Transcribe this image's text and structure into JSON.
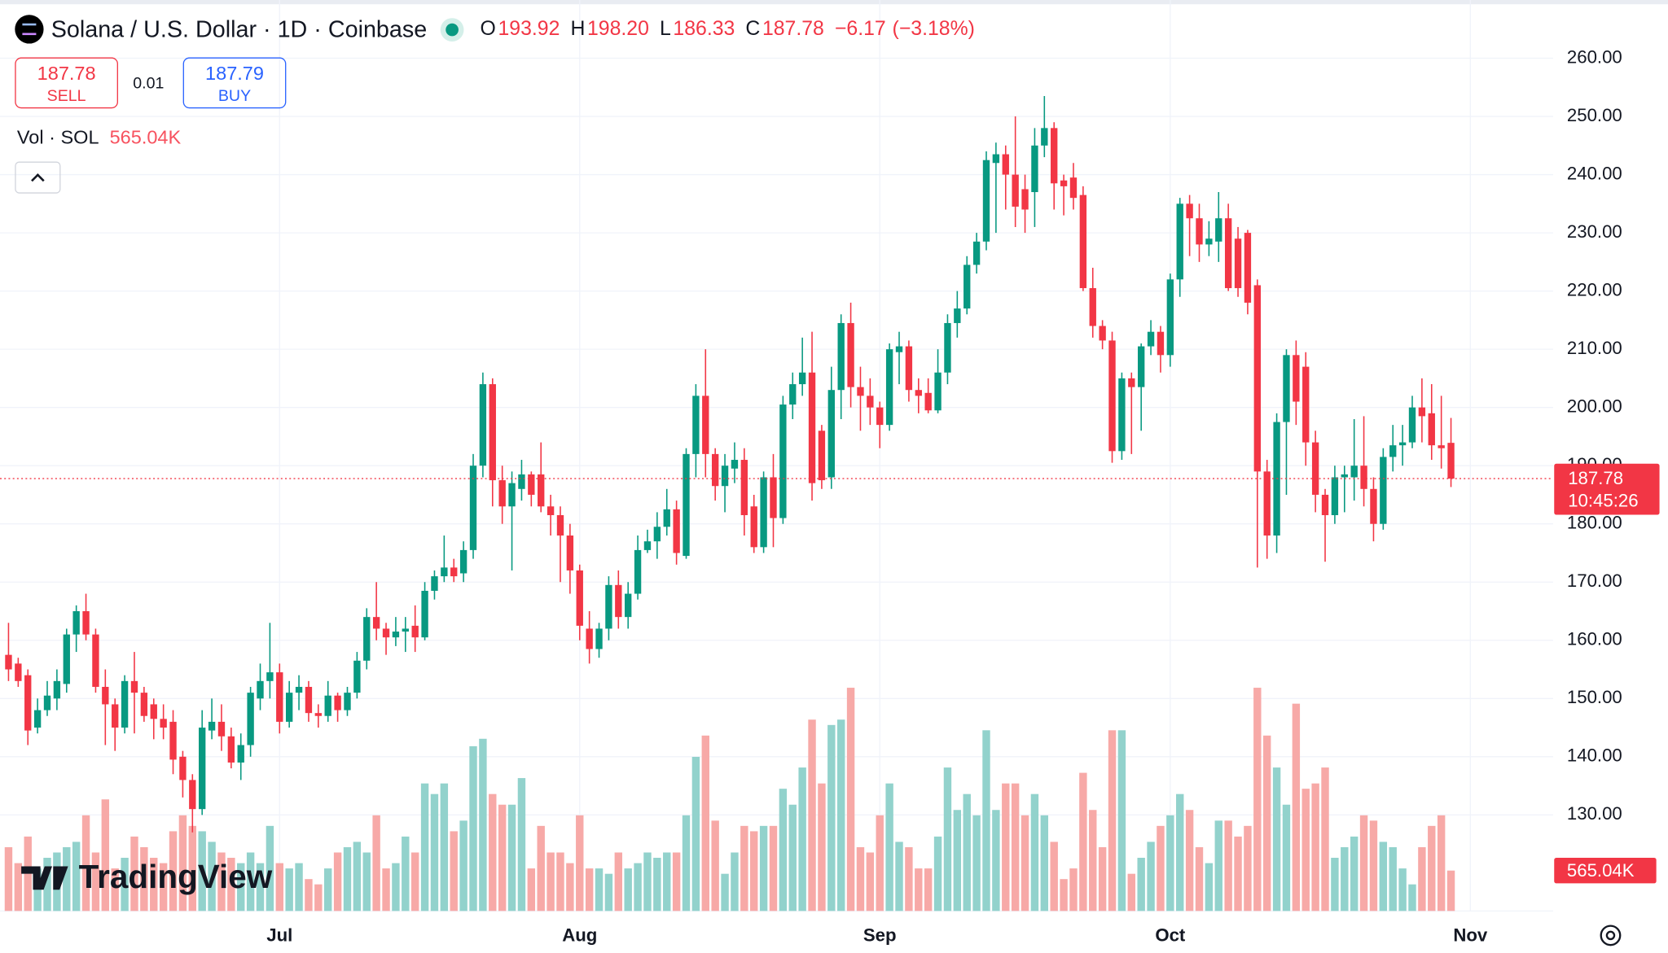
{
  "chart_data": {
    "type": "candlestick",
    "title": "Solana / U.S. Dollar · 1D · Coinbase",
    "ohlc_legend": [
      {
        "key": "O",
        "value": 193.92,
        "label": "193.92"
      },
      {
        "key": "H",
        "value": 198.2,
        "label": "198.20"
      },
      {
        "key": "L",
        "value": 186.33,
        "label": "186.33"
      },
      {
        "key": "C",
        "value": 187.78,
        "label": "187.78"
      }
    ],
    "change": {
      "value": -6.17,
      "label": "−6.17"
    },
    "change_percent": {
      "value": -3.18,
      "label": "(−3.18%)"
    },
    "sell": {
      "value": 187.78,
      "label": "187.78",
      "text": "SELL"
    },
    "spread": 0.01,
    "buy": {
      "value": 187.79,
      "label": "187.79",
      "text": "BUY"
    },
    "volume_legend": "Vol · SOL",
    "open": [
      157.5,
      156,
      154,
      145,
      148,
      150,
      152.5,
      161,
      165,
      161,
      152,
      149,
      145,
      153,
      151,
      149,
      146.5,
      146,
      140,
      136,
      131,
      144.5,
      146,
      143.5,
      139,
      142,
      150,
      153,
      154.5,
      146,
      151,
      152,
      147.5,
      147,
      150.5,
      148,
      151,
      156.5,
      164,
      162,
      160.5,
      161.5,
      162.5,
      160.5,
      168.5,
      171,
      172.5,
      171.5,
      175.5,
      190,
      204,
      187.5,
      183,
      186,
      188.5,
      188.5,
      183,
      181.5,
      178,
      172,
      162,
      158.5,
      162,
      169.5,
      164,
      168,
      175.5,
      177,
      179.5,
      182.5,
      174.5,
      192,
      202,
      192,
      186.5,
      189.5,
      191,
      183,
      176,
      188,
      181,
      200.5,
      204,
      206,
      196,
      188,
      203,
      214.5,
      203.5,
      202,
      200,
      197,
      209.5,
      210.5,
      203,
      202.5,
      199.5,
      206,
      214.5,
      217,
      224.5,
      228.5,
      242,
      243.5,
      240,
      237.5,
      237,
      245,
      248,
      239,
      239.5,
      236.5,
      220.5,
      214,
      211.5,
      192.5,
      205,
      203.5,
      210.5,
      213,
      209,
      222,
      235,
      232.5,
      228,
      228.5,
      232.5,
      229,
      230,
      221,
      189,
      178,
      197.5,
      209,
      207,
      194,
      185,
      181.5,
      188,
      188,
      190,
      186,
      180,
      191.5,
      193.5,
      194,
      200,
      199,
      193.5,
      193.92
    ],
    "high": [
      163,
      157,
      155,
      150,
      153,
      155,
      162,
      166,
      168,
      162,
      155,
      150,
      154,
      158,
      152,
      150,
      149,
      148,
      141,
      137,
      148,
      150,
      149,
      145,
      144,
      152,
      156,
      163,
      156,
      153,
      154,
      153,
      149,
      153,
      151,
      152,
      158,
      165.5,
      170,
      163,
      164,
      164,
      166,
      170,
      172,
      178,
      174,
      177,
      192,
      206,
      205,
      190,
      189,
      191,
      189,
      194,
      185,
      183,
      180,
      173,
      165,
      163,
      171,
      172,
      170,
      178,
      179,
      182,
      186,
      184,
      193,
      204,
      210,
      193,
      192,
      194,
      193,
      185,
      189,
      192,
      202,
      206,
      212,
      213,
      197,
      207,
      216,
      218,
      207,
      205,
      201,
      211,
      213,
      211.5,
      205,
      205,
      210,
      216,
      220,
      226,
      230,
      244,
      245.5,
      245,
      250,
      240,
      248,
      253.5,
      249,
      240,
      242,
      238,
      224,
      215,
      213,
      206,
      206,
      211,
      215,
      214,
      223,
      236,
      236.5,
      235,
      232,
      237,
      235,
      231,
      230.5,
      222,
      191,
      199,
      210,
      211.5,
      209.5,
      196,
      186,
      190,
      190,
      198,
      198.5,
      188,
      193,
      197,
      197,
      202,
      205,
      204,
      202,
      198.2
    ],
    "low": [
      153,
      152,
      142,
      144,
      147,
      148,
      151,
      158,
      160,
      151,
      142,
      141,
      144,
      144,
      146,
      143,
      143,
      137,
      133,
      127,
      130,
      143,
      141,
      138,
      136,
      140,
      148,
      150,
      144,
      145,
      148,
      146,
      145,
      146,
      146,
      147,
      150,
      155,
      160,
      157.5,
      159,
      158,
      158,
      160,
      167,
      170,
      170,
      170,
      174,
      188,
      183,
      180,
      172,
      184,
      183,
      182,
      178,
      170,
      168,
      160,
      156,
      157,
      160,
      162,
      162,
      167,
      175,
      174,
      178,
      173,
      174,
      188,
      188,
      184,
      182,
      187,
      178,
      175,
      175,
      176,
      180,
      198,
      202,
      184,
      186,
      186,
      198,
      200,
      196,
      197,
      193,
      196,
      204,
      201,
      199,
      199,
      199,
      204,
      212,
      216,
      223,
      227,
      230,
      234,
      231,
      230,
      231,
      243,
      234,
      233,
      234,
      220,
      212,
      210,
      190.5,
      191,
      192,
      196,
      209,
      206,
      207,
      219,
      226,
      225,
      226,
      225,
      220,
      219,
      216,
      172.5,
      174,
      175,
      185,
      197,
      190,
      182,
      173.5,
      180,
      182,
      184,
      183,
      177,
      179,
      189,
      190,
      193,
      194,
      191,
      189.5,
      186.33
    ],
    "close": [
      155,
      153,
      144.5,
      148,
      150.5,
      153,
      161,
      165,
      161,
      152,
      149,
      145,
      153,
      151,
      147,
      146.5,
      145,
      139.5,
      136,
      131,
      145,
      146,
      143.5,
      139,
      142,
      151,
      153,
      154.5,
      146,
      151,
      152,
      147.5,
      147,
      150.5,
      148,
      151,
      156.5,
      164,
      162,
      160.5,
      161.5,
      162,
      160.5,
      168.5,
      171,
      172.5,
      171,
      175.5,
      190,
      204,
      187.5,
      183,
      187,
      188.5,
      185,
      183,
      181.5,
      178,
      172,
      162.5,
      158.5,
      162,
      169.5,
      164,
      168,
      175.5,
      177,
      179.5,
      182.5,
      175,
      192,
      202,
      192,
      186.5,
      190,
      191,
      181.5,
      176,
      188,
      181,
      200.5,
      204,
      206,
      187,
      187.5,
      203,
      214.5,
      203.5,
      202,
      200,
      197,
      210,
      210.5,
      203,
      202,
      199.5,
      206,
      214.5,
      217,
      224.5,
      228.5,
      242.5,
      243.5,
      240,
      234.5,
      234,
      245,
      248,
      238.5,
      238,
      236,
      220.5,
      214,
      211.5,
      192.5,
      205,
      203.5,
      210.5,
      213,
      209,
      222,
      235,
      232.5,
      228,
      229,
      232.5,
      220.5,
      220.5,
      218,
      189,
      178,
      197.5,
      209,
      201,
      194,
      185,
      181.5,
      188,
      188.5,
      190,
      186,
      180,
      191.5,
      193.5,
      194,
      200,
      198.5,
      193.5,
      193,
      187.78
    ],
    "volume": {
      "values": [
        892,
        669,
        1041,
        595,
        744,
        818,
        892,
        967,
        1338,
        818,
        1561,
        595,
        744,
        1041,
        892,
        744,
        669,
        1115,
        1338,
        1190,
        1115,
        967,
        818,
        744,
        669,
        818,
        669,
        1190,
        669,
        595,
        669,
        446,
        372,
        595,
        818,
        892,
        967,
        818,
        1338,
        595,
        669,
        1041,
        818,
        1784,
        1636,
        1784,
        1115,
        1264,
        2305,
        2409,
        1636,
        1487,
        1487,
        1859,
        595,
        1190,
        818,
        818,
        669,
        1338,
        595,
        595,
        520,
        818,
        595,
        669,
        818,
        744,
        818,
        818,
        1338,
        2156,
        2454,
        1264,
        520,
        818,
        1190,
        1115,
        1190,
        1190,
        1710,
        1487,
        2007,
        2677,
        1784,
        2602,
        2677,
        3123,
        892,
        818,
        1338,
        1784,
        967,
        892,
        595,
        595,
        1041,
        2007,
        1413,
        1636,
        1338,
        2528,
        1413,
        1784,
        1784,
        1338,
        1636,
        1338,
        967,
        446,
        595,
        1933,
        1413,
        892,
        2528,
        2528,
        520,
        744,
        967,
        1190,
        1338,
        1636,
        1413,
        892,
        669,
        1264,
        1264,
        1041,
        1190,
        3123,
        2454,
        2007,
        1487,
        2900,
        1710,
        1784,
        2007,
        744,
        892,
        1041,
        1338,
        1264,
        967,
        892,
        595,
        372,
        892,
        1190,
        1338,
        565.04
      ],
      "last_label": "565.04K"
    },
    "price_tag": {
      "value": 187.78,
      "label": "187.78",
      "countdown": "10:45:26"
    },
    "xlim": [
      -0.88,
      159
    ],
    "xticks": [
      {
        "value": 28,
        "label": "Jul"
      },
      {
        "value": 59,
        "label": "Aug"
      },
      {
        "value": 90,
        "label": "Sep"
      },
      {
        "value": 120,
        "label": "Oct"
      },
      {
        "value": 151,
        "label": "Nov"
      }
    ],
    "ylim": [
      113.5,
      270
    ],
    "yticks": [
      {
        "value": 130,
        "label": "130.00"
      },
      {
        "value": 140,
        "label": "140.00"
      },
      {
        "value": 150,
        "label": "150.00"
      },
      {
        "value": 160,
        "label": "160.00"
      },
      {
        "value": 170,
        "label": "170.00"
      },
      {
        "value": 180,
        "label": "180.00"
      },
      {
        "value": 190,
        "label": "190.00"
      },
      {
        "value": 200,
        "label": "200.00"
      },
      {
        "value": 210,
        "label": "210.00"
      },
      {
        "value": 220,
        "label": "220.00"
      },
      {
        "value": 230,
        "label": "230.00"
      },
      {
        "value": 240,
        "label": "240.00"
      },
      {
        "value": 250,
        "label": "250.00"
      },
      {
        "value": 260,
        "label": "260.00"
      }
    ],
    "colors": {
      "up": "#089981",
      "down": "#f23645",
      "volume_up": "#92d2cc",
      "volume_down": "#f7a9a7",
      "buy": "#2962ff"
    },
    "grid": true,
    "watermark": "TradingView"
  }
}
